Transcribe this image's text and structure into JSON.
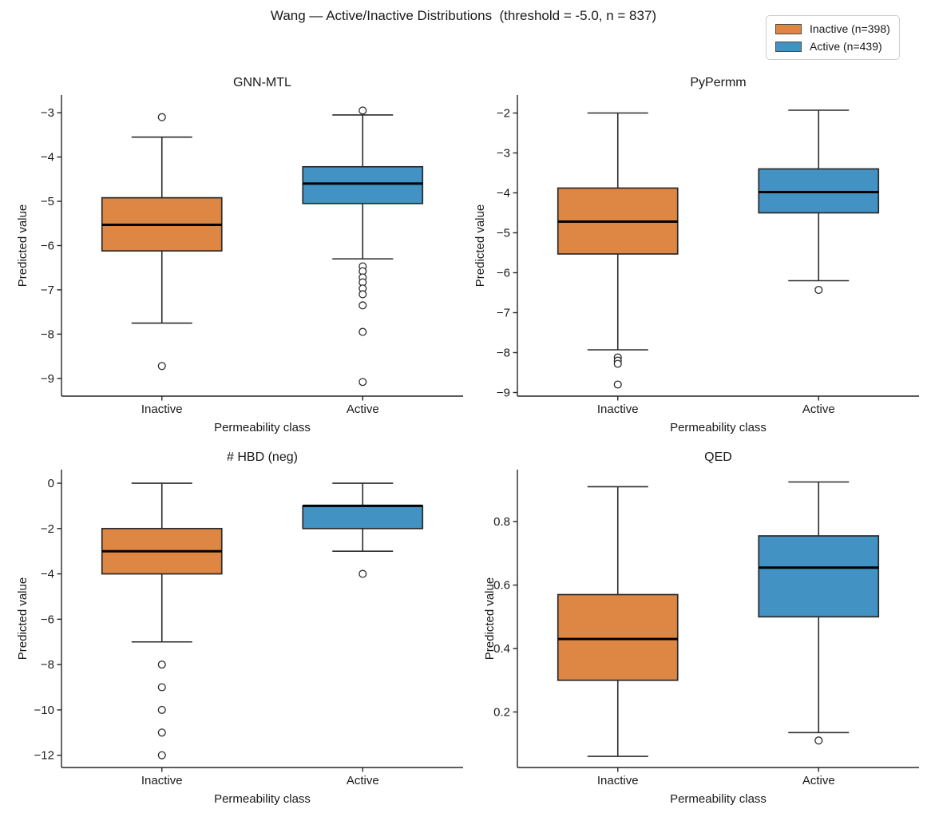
{
  "figure": {
    "suptitle": "Wang — Active/Inactive Distributions  (threshold = -5.0, n = 837)"
  },
  "legend": {
    "items": [
      {
        "label": "Inactive (n=398)",
        "color": "#DE8745"
      },
      {
        "label": "Active (n=439)",
        "color": "#4292C3"
      }
    ]
  },
  "colors": {
    "inactive": "#DE8745",
    "active": "#4292C3",
    "box_edge": "#2b2b2b",
    "median": "#000000",
    "axis": "#262626",
    "text": "#1a1a1a"
  },
  "chart_data": [
    {
      "type": "box",
      "title": "GNN-MTL",
      "xlabel": "Permeability class",
      "ylabel": "Predicted value",
      "categories": [
        "Inactive",
        "Active"
      ],
      "yticks": [
        -3,
        -4,
        -5,
        -6,
        -7,
        -8,
        -9
      ],
      "ylim": [
        -9.4,
        -2.6
      ],
      "grid": false,
      "series": [
        {
          "name": "Inactive",
          "color": "inactive",
          "low": -7.75,
          "q1": -6.12,
          "median": -5.53,
          "q3": -4.92,
          "high": -3.55,
          "outliers": [
            -3.1,
            -8.72
          ]
        },
        {
          "name": "Active",
          "color": "active",
          "low": -6.3,
          "q1": -5.05,
          "median": -4.6,
          "q3": -4.22,
          "high": -3.05,
          "outliers": [
            -2.95,
            -6.47,
            -6.58,
            -6.72,
            -6.83,
            -6.97,
            -7.1,
            -7.35,
            -7.95,
            -9.08
          ]
        }
      ]
    },
    {
      "type": "box",
      "title": "PyPermm",
      "xlabel": "Permeability class",
      "ylabel": "Predicted value",
      "categories": [
        "Inactive",
        "Active"
      ],
      "yticks": [
        -2,
        -3,
        -4,
        -5,
        -6,
        -7,
        -8,
        -9
      ],
      "ylim": [
        -9.09,
        -1.55
      ],
      "grid": false,
      "series": [
        {
          "name": "Inactive",
          "color": "inactive",
          "low": -7.93,
          "q1": -5.53,
          "median": -4.72,
          "q3": -3.88,
          "high": -2.0,
          "outliers": [
            -8.12,
            -8.2,
            -8.28,
            -8.8
          ]
        },
        {
          "name": "Active",
          "color": "active",
          "low": -6.2,
          "q1": -4.5,
          "median": -3.98,
          "q3": -3.4,
          "high": -1.93,
          "outliers": [
            -6.43
          ]
        }
      ]
    },
    {
      "type": "box",
      "title": "# HBD (neg)",
      "xlabel": "Permeability class",
      "ylabel": "Predicted value",
      "categories": [
        "Inactive",
        "Active"
      ],
      "yticks": [
        0,
        -2,
        -4,
        -6,
        -8,
        -10,
        -12
      ],
      "ylim": [
        -12.54,
        0.6
      ],
      "grid": false,
      "series": [
        {
          "name": "Inactive",
          "color": "inactive",
          "low": -7,
          "q1": -4,
          "median": -3,
          "q3": -2,
          "high": 0,
          "outliers": [
            -8,
            -9,
            -10,
            -11,
            -12
          ]
        },
        {
          "name": "Active",
          "color": "active",
          "low": -3,
          "q1": -2,
          "median": -1,
          "q3": -1,
          "high": 0,
          "outliers": [
            -4
          ]
        }
      ]
    },
    {
      "type": "box",
      "title": "QED",
      "xlabel": "Permeability class",
      "ylabel": "Predicted value",
      "categories": [
        "Inactive",
        "Active"
      ],
      "yticks": [
        0.2,
        0.4,
        0.6,
        0.8
      ],
      "ylim": [
        0.025,
        0.964
      ],
      "grid": false,
      "series": [
        {
          "name": "Inactive",
          "color": "inactive",
          "low": 0.06,
          "q1": 0.3,
          "median": 0.43,
          "q3": 0.57,
          "high": 0.91,
          "outliers": []
        },
        {
          "name": "Active",
          "color": "active",
          "low": 0.135,
          "q1": 0.5,
          "median": 0.655,
          "q3": 0.755,
          "high": 0.925,
          "outliers": [
            0.11
          ]
        }
      ]
    }
  ]
}
